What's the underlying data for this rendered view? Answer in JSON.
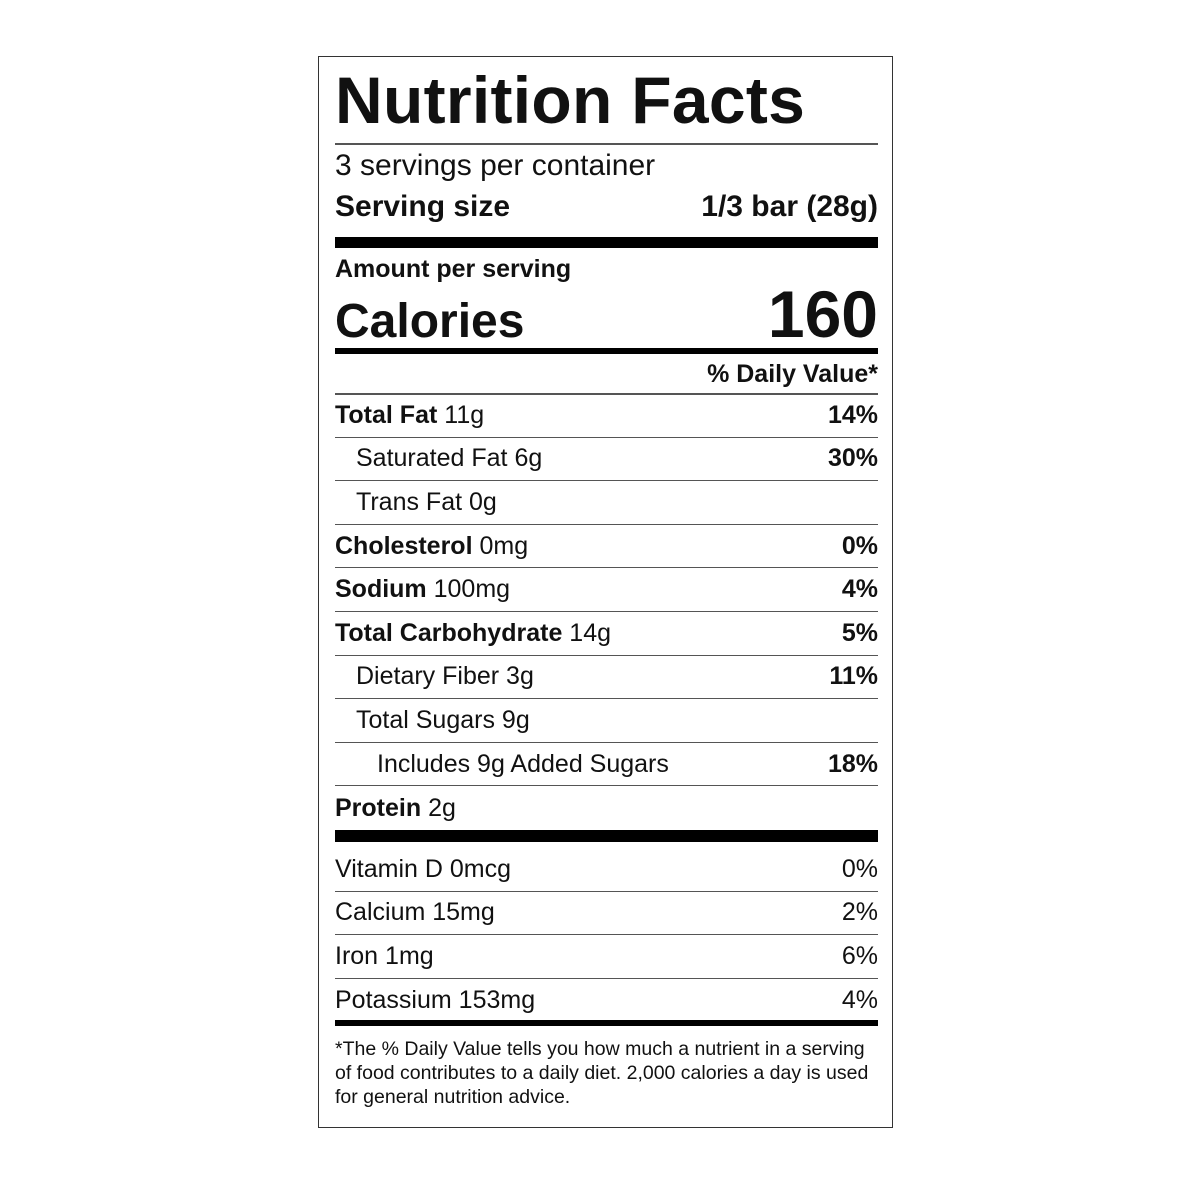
{
  "title": "Nutrition Facts",
  "servings_per_container": "3 servings per container",
  "serving_size": {
    "label": "Serving size",
    "value": "1/3 bar (28g)"
  },
  "amount_per_serving": "Amount per serving",
  "calories": {
    "label": "Calories",
    "value": "160"
  },
  "daily_value_header": "% Daily Value*",
  "nutrients": [
    {
      "name": "Total Fat",
      "amount": "11g",
      "daily_value": "14%"
    },
    {
      "name": "Saturated Fat",
      "amount": "6g",
      "daily_value": "30%"
    },
    {
      "name": "Trans Fat",
      "amount": "0g"
    },
    {
      "name": "Cholesterol",
      "amount": "0mg",
      "daily_value": "0%"
    },
    {
      "name": "Sodium",
      "amount": "100mg",
      "daily_value": "4%"
    },
    {
      "name": "Total Carbohydrate",
      "amount": "14g",
      "daily_value": "5%"
    },
    {
      "name": "Dietary Fiber",
      "amount": "3g",
      "daily_value": "11%"
    },
    {
      "name": "Total Sugars",
      "amount": "9g"
    },
    {
      "name": "Includes 9g Added Sugars",
      "daily_value": "18%"
    },
    {
      "name": "Protein",
      "amount": "2g"
    }
  ],
  "vitamins": [
    {
      "name": "Vitamin D",
      "amount": "0mcg",
      "daily_value": "0%"
    },
    {
      "name": "Calcium",
      "amount": "15mg",
      "daily_value": "2%"
    },
    {
      "name": "Iron",
      "amount": "1mg",
      "daily_value": "6%"
    },
    {
      "name": "Potassium",
      "amount": "153mg",
      "daily_value": "4%"
    }
  ],
  "footnote": "*The % Daily Value tells you how much a nutrient in a serving of food contributes to a daily diet. 2,000 calories a day is used for general nutrition advice."
}
